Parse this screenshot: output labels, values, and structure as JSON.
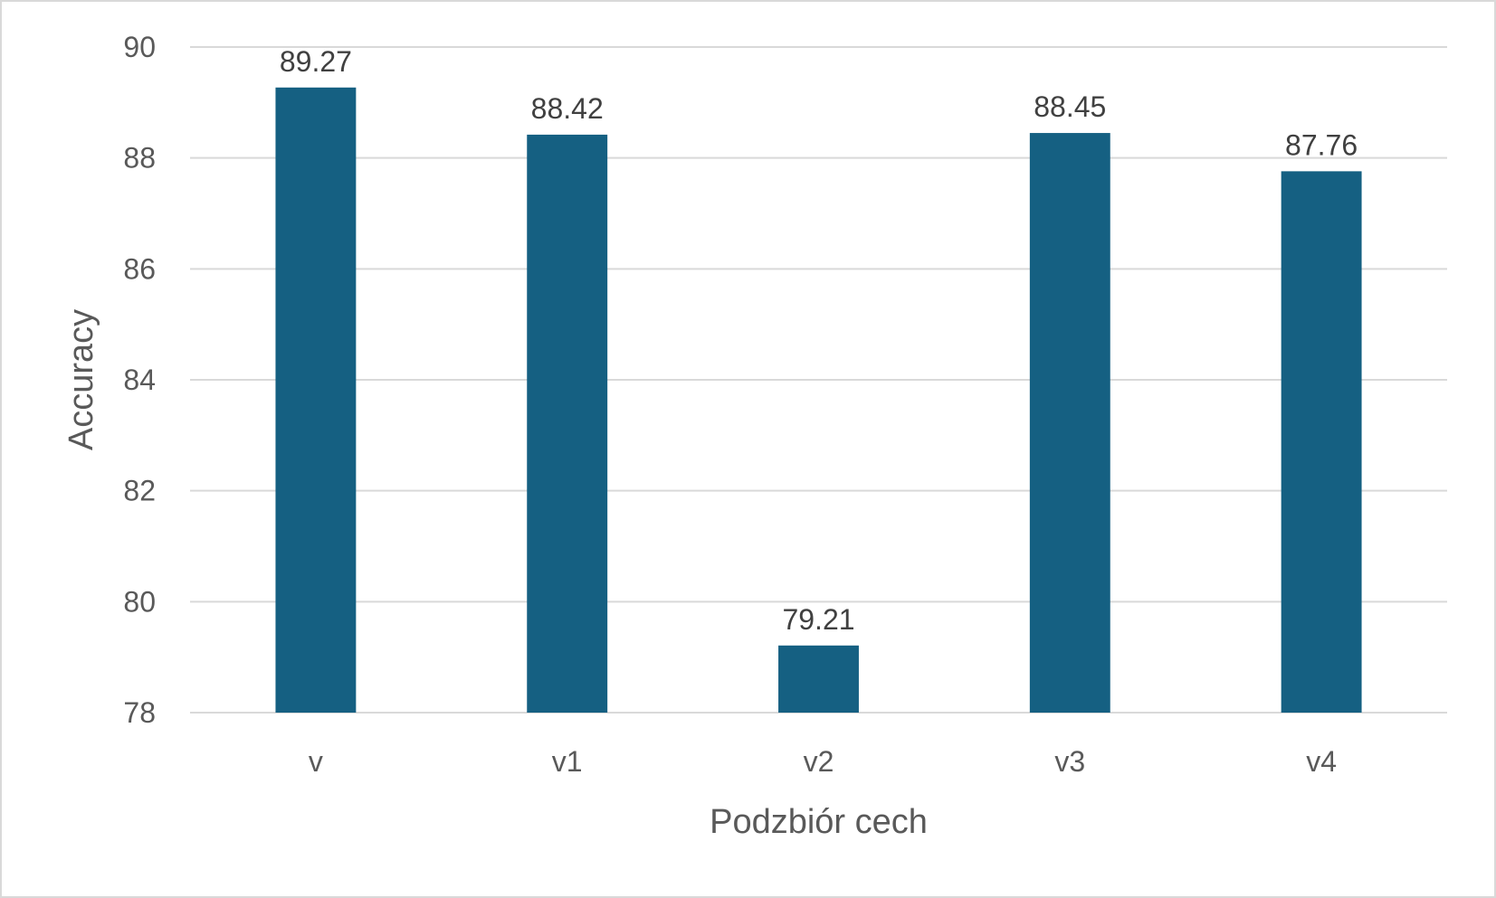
{
  "chart_data": {
    "type": "bar",
    "title": "",
    "xlabel": "Podzbiór cech",
    "ylabel": "Accuracy",
    "categories": [
      "v",
      "v1",
      "v2",
      "v3",
      "v4"
    ],
    "values": [
      89.27,
      88.42,
      79.21,
      88.45,
      87.76
    ],
    "data_labels": [
      "89.27",
      "88.42",
      "79.21",
      "88.45",
      "87.76"
    ],
    "ylim": [
      78,
      90
    ],
    "yticks": [
      78,
      80,
      82,
      84,
      86,
      88,
      90
    ],
    "grid": true,
    "legend": "none",
    "bar_color": "#156082",
    "gridline_color": "#d9d9d9"
  }
}
